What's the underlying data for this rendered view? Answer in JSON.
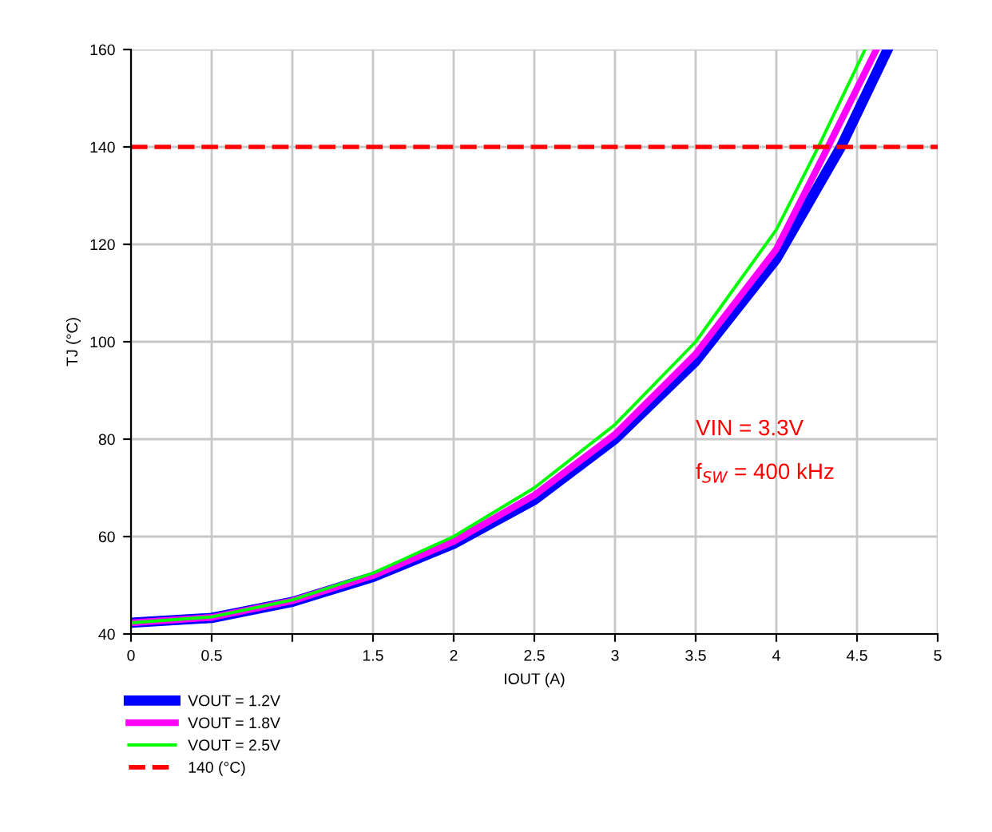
{
  "chart_data": {
    "type": "line",
    "xlabel": "IOUT (A)",
    "ylabel": "TJ (°C)",
    "xlim": [
      0,
      5
    ],
    "xticks": [
      0,
      0.5,
      {
        "value": 1,
        "label": null
      },
      1.5,
      2,
      2.5,
      3,
      3.5,
      4,
      4.5,
      5
    ],
    "ylim": [
      40,
      160
    ],
    "yticks": [
      40,
      60,
      80,
      100,
      120,
      140,
      160
    ],
    "grid": true,
    "legend": "bottom left",
    "line_style": "solid",
    "marker": "none",
    "series": [
      {
        "name": "VOUT = 1.2V",
        "color": "#0000ff",
        "x": [
          0,
          0.5,
          1,
          1.5,
          2,
          2.5,
          3,
          3.5,
          4,
          4.4,
          4.69
        ],
        "values": [
          42.3,
          43.3,
          46.6,
          51.7,
          58.5,
          67.5,
          80,
          96,
          117,
          140,
          160
        ]
      },
      {
        "name": "VOUT = 1.8V",
        "color": "#ff00ff",
        "x": [
          0,
          0.5,
          1,
          1.5,
          2,
          2.5,
          3,
          3.5,
          4,
          4.32,
          4.62
        ],
        "values": [
          42.3,
          43.4,
          46.8,
          52,
          59,
          68.5,
          81,
          97.5,
          119,
          140,
          160
        ]
      },
      {
        "name": "VOUT = 2.5V",
        "color": "#00ff00",
        "x": [
          0,
          0.5,
          1,
          1.5,
          2,
          2.5,
          3,
          3.5,
          4,
          4.26,
          4.55
        ],
        "values": [
          42.3,
          43.5,
          47,
          52.5,
          60,
          70,
          83,
          100,
          123,
          140,
          160
        ]
      }
    ],
    "ref_lines": [
      {
        "axis": "y",
        "value": 140,
        "label": "140 (°C)",
        "color": "#ff0000",
        "line_style": "dashed"
      }
    ],
    "annotations": [
      "VIN = 3.3V",
      "f$_{SW}$ = 400 kHz"
    ]
  }
}
